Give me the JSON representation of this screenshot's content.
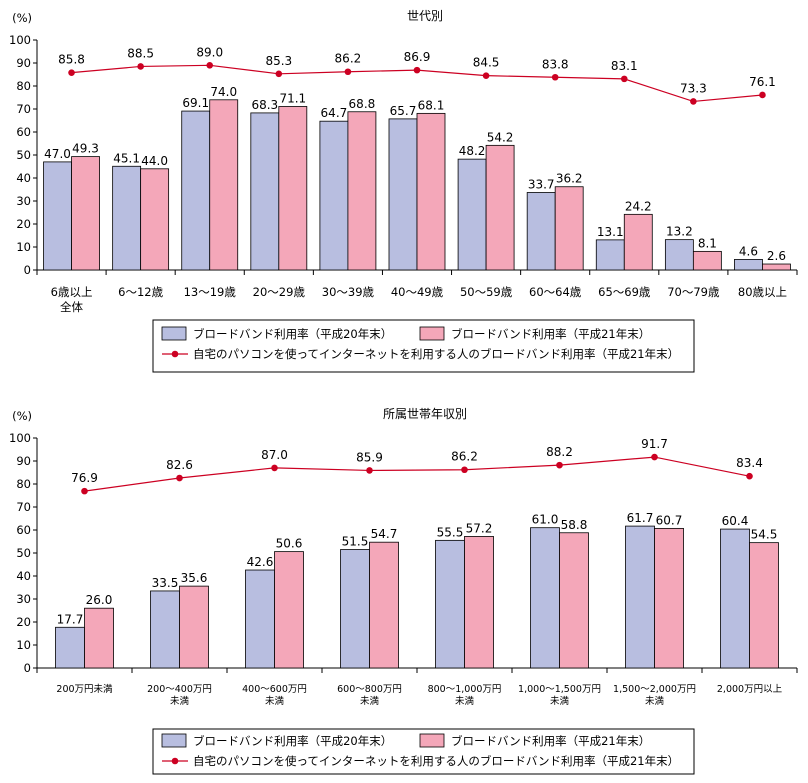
{
  "chart_data": [
    {
      "type": "bar",
      "title": "世代別",
      "ylabel": "(%)",
      "ylim": [
        0,
        100
      ],
      "yticks": [
        0,
        10,
        20,
        30,
        40,
        50,
        60,
        70,
        80,
        90,
        100
      ],
      "grid": false,
      "legend_position": "bottom",
      "categories": [
        [
          "6歳以上",
          "全体"
        ],
        [
          "6～12歳"
        ],
        [
          "13～19歳"
        ],
        [
          "20～29歳"
        ],
        [
          "30～39歳"
        ],
        [
          "40～49歳"
        ],
        [
          "50～59歳"
        ],
        [
          "60～64歳"
        ],
        [
          "65～69歳"
        ],
        [
          "70～79歳"
        ],
        [
          "80歳以上"
        ]
      ],
      "series": [
        {
          "name": "ブロードバンド利用率（平成20年末）",
          "type": "bar",
          "color": "#b8bee0",
          "values": [
            47.0,
            45.1,
            69.1,
            68.3,
            64.7,
            65.7,
            48.2,
            33.7,
            13.1,
            13.2,
            4.6
          ],
          "labels": [
            "47.0",
            "45.1",
            "69.1",
            "68.3",
            "64.7",
            "65.7",
            "48.2",
            "33.7",
            "13.1",
            "13.2",
            "4.6"
          ]
        },
        {
          "name": "ブロードバンド利用率（平成21年末）",
          "type": "bar",
          "color": "#f4a7b9",
          "values": [
            49.3,
            44.0,
            74.0,
            71.1,
            68.8,
            68.1,
            54.2,
            36.2,
            24.2,
            8.1,
            2.6
          ],
          "labels": [
            "49.3",
            "44.0",
            "74.0",
            "71.1",
            "68.8",
            "68.1",
            "54.2",
            "36.2",
            "24.2",
            "8.1",
            "2.6"
          ]
        },
        {
          "name": "自宅のパソコンを使ってインターネットを利用する人のブロードバンド利用率（平成21年末）",
          "type": "line",
          "color": "#cc0022",
          "values": [
            85.8,
            88.5,
            89.0,
            85.3,
            86.2,
            86.9,
            84.5,
            83.8,
            83.1,
            73.3,
            76.1
          ],
          "labels": [
            "85.8",
            "88.5",
            "89.0",
            "85.3",
            "86.2",
            "86.9",
            "84.5",
            "83.8",
            "83.1",
            "73.3",
            "76.1"
          ]
        }
      ]
    },
    {
      "type": "bar",
      "title": "所属世帯年収別",
      "ylabel": "(%)",
      "ylim": [
        0,
        100
      ],
      "yticks": [
        0,
        10,
        20,
        30,
        40,
        50,
        60,
        70,
        80,
        90,
        100
      ],
      "grid": false,
      "legend_position": "bottom",
      "categories": [
        [
          "200万円未満"
        ],
        [
          "200～400万円",
          "未満"
        ],
        [
          "400～600万円",
          "未満"
        ],
        [
          "600～800万円",
          "未満"
        ],
        [
          "800～1,000万円",
          "未満"
        ],
        [
          "1,000～1,500万円",
          "未満"
        ],
        [
          "1,500～2,000万円",
          "未満"
        ],
        [
          "2,000万円以上"
        ]
      ],
      "series": [
        {
          "name": "ブロードバンド利用率（平成20年末）",
          "type": "bar",
          "color": "#b8bee0",
          "values": [
            17.7,
            33.5,
            42.6,
            51.5,
            55.5,
            61.0,
            61.7,
            60.4
          ],
          "labels": [
            "17.7",
            "33.5",
            "42.6",
            "51.5",
            "55.5",
            "61.0",
            "61.7",
            "60.4"
          ]
        },
        {
          "name": "ブロードバンド利用率（平成21年末）",
          "type": "bar",
          "color": "#f4a7b9",
          "values": [
            26.0,
            35.6,
            50.6,
            54.7,
            57.2,
            58.8,
            60.7,
            54.5
          ],
          "labels": [
            "26.0",
            "35.6",
            "50.6",
            "54.7",
            "57.2",
            "58.8",
            "60.7",
            "54.5"
          ]
        },
        {
          "name": "自宅のパソコンを使ってインターネットを利用する人のブロードバンド利用率（平成21年末）",
          "type": "line",
          "color": "#cc0022",
          "values": [
            76.9,
            82.6,
            87.0,
            85.9,
            86.2,
            88.2,
            91.7,
            83.4
          ],
          "labels": [
            "76.9",
            "82.6",
            "87.0",
            "85.9",
            "86.2",
            "88.2",
            "91.7",
            "83.4"
          ]
        }
      ]
    }
  ]
}
